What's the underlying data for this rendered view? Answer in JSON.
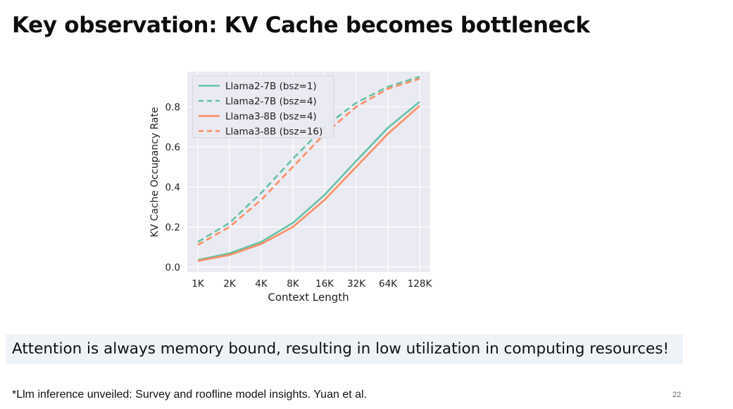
{
  "slide": {
    "title": "Key observation: KV Cache becomes bottleneck",
    "callout": "Attention is always memory bound, resulting in low utilization in computing resources!",
    "footnote": "*Llm inference unveiled: Survey and roofline model insights. Yuan et al.",
    "page_number": "22"
  },
  "chart_data": {
    "type": "line",
    "title": "",
    "xlabel": "Context Length",
    "ylabel": "KV Cache Occupancy Rate",
    "categories": [
      "1K",
      "2K",
      "4K",
      "8K",
      "16K",
      "32K",
      "64K",
      "128K"
    ],
    "ylim": [
      0,
      0.95
    ],
    "yticks": [
      0.0,
      0.2,
      0.4,
      0.6,
      0.8
    ],
    "grid": true,
    "legend_position": "top-left",
    "colors": {
      "teal": "#66c2a5",
      "orange": "#fc8d62",
      "background": "#eaeaf2",
      "grid": "#ffffff"
    },
    "series": [
      {
        "name": "Llama2-7B (bsz=1)",
        "color": "#66c2a5",
        "dashed": false,
        "values": [
          0.035,
          0.068,
          0.125,
          0.22,
          0.36,
          0.53,
          0.695,
          0.825
        ]
      },
      {
        "name": "Llama2-7B (bsz=4)",
        "color": "#66c2a5",
        "dashed": true,
        "values": [
          0.125,
          0.22,
          0.37,
          0.54,
          0.7,
          0.82,
          0.9,
          0.95
        ]
      },
      {
        "name": "Llama3-8B (bsz=4)",
        "color": "#fc8d62",
        "dashed": false,
        "values": [
          0.03,
          0.06,
          0.115,
          0.2,
          0.335,
          0.5,
          0.665,
          0.805
        ]
      },
      {
        "name": "Llama3-8B (bsz=16)",
        "color": "#fc8d62",
        "dashed": true,
        "values": [
          0.11,
          0.2,
          0.335,
          0.5,
          0.665,
          0.8,
          0.89,
          0.94
        ]
      }
    ]
  }
}
